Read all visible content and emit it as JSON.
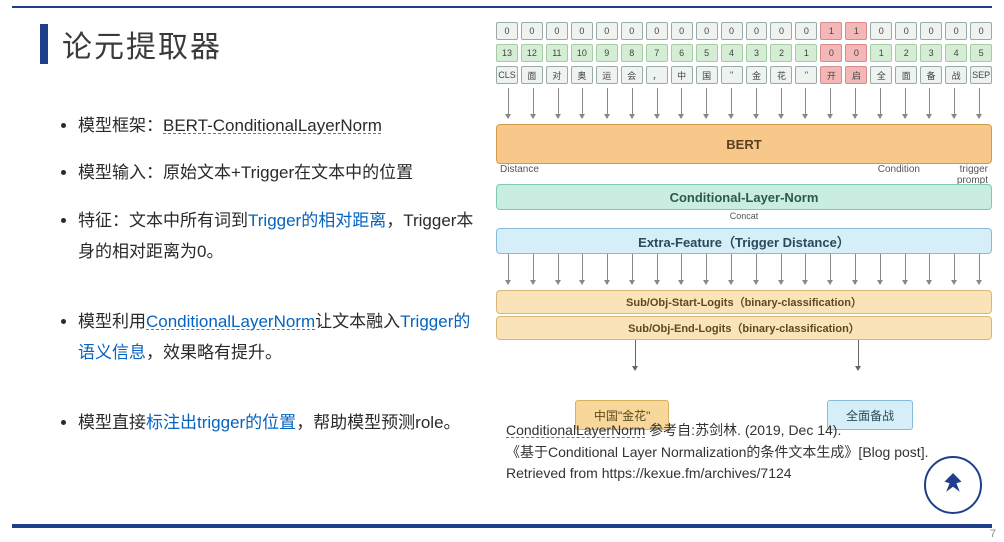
{
  "title": "论元提取器",
  "page_number": "7",
  "bullets": {
    "b1_pre": "模型框架：",
    "b1_kw": "BERT-ConditionalLayerNorm",
    "b2": "模型输入：原始文本+Trigger在文本中的位置",
    "b3_pre": "特征：文本中所有词到",
    "b3_blue": "Trigger的相对距离",
    "b3_post": "，Trigger本身的相对距离为0。",
    "b4_pre": "模型利用",
    "b4_blue1": "ConditionalLayerNorm",
    "b4_mid": "让文本融入",
    "b4_blue2": "Trigger的语义信息",
    "b4_post": "，效果略有提升。",
    "b5_pre": "模型直接",
    "b5_blue": "标注出trigger的位置",
    "b5_post": "，帮助模型预测role。"
  },
  "diagram": {
    "row0": [
      "0",
      "0",
      "0",
      "0",
      "0",
      "0",
      "0",
      "0",
      "0",
      "0",
      "0",
      "0",
      "0",
      "1",
      "1",
      "0",
      "0",
      "0",
      "0",
      "0"
    ],
    "row0_hl": [
      13,
      14
    ],
    "row1": [
      "13",
      "12",
      "11",
      "10",
      "9",
      "8",
      "7",
      "6",
      "5",
      "4",
      "3",
      "2",
      "1",
      "0",
      "0",
      "1",
      "2",
      "3",
      "4",
      "5"
    ],
    "row1_hl": [
      13,
      14
    ],
    "row2": [
      "CLS",
      "面",
      "对",
      "奥",
      "运",
      "会",
      "，",
      "中",
      "国",
      "\"",
      "金",
      "花",
      "\"",
      "开",
      "启",
      "全",
      "面",
      "备",
      "战",
      "SEP"
    ],
    "row2_hl": [
      13,
      14
    ],
    "bert_label": "BERT",
    "bert_left": "Distance",
    "bert_cond": "Condition",
    "bert_right": "trigger prompt",
    "cln_label": "Conditional-Layer-Norm",
    "concat_label": "Concat",
    "feat_label": "Extra-Feature（Trigger Distance）",
    "sub1": "Sub/Obj-Start-Logits（binary-classification）",
    "sub2": "Sub/Obj-End-Logits（binary-classification）",
    "out1": "中国\"金花\"",
    "out2": "全面备战",
    "colors": {
      "bert_bg": "#f7c88a",
      "cln_bg": "#c9eee1",
      "feat_bg": "#d6eef8",
      "sub_bg": "#fae3b8",
      "out1_bg": "#f8d79a",
      "out2_bg": "#d6eef8",
      "hl_bg": "#f4b7b7",
      "cell_bg": "#d4edd4"
    }
  },
  "citation": {
    "line1_pre": "ConditionalLayerNorm",
    "line1_post": " 参考自:苏剑林. (2019, Dec 14).",
    "line2": "《基于Conditional Layer Normalization的条件文本生成》[Blog post]. Retrieved from https://kexue.fm/archives/7124"
  }
}
